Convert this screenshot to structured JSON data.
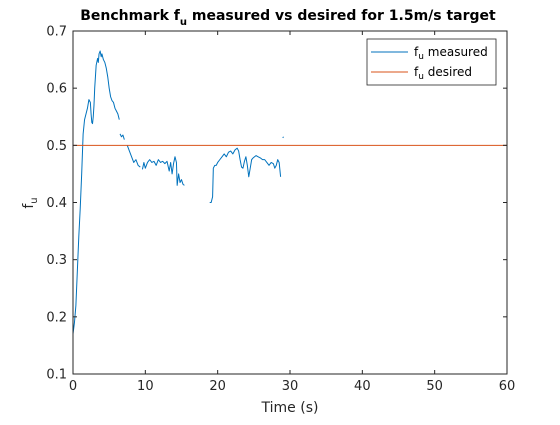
{
  "chart_data": {
    "type": "line",
    "title": {
      "prefix": "Benchmark f",
      "subscript": "u",
      "suffix": " measured vs desired for 1.5m/s target"
    },
    "xlabel": "Time (s)",
    "ylabel": {
      "main": "f",
      "subscript": "u"
    },
    "xlim": [
      0,
      60
    ],
    "ylim": [
      0.1,
      0.7
    ],
    "xticks": [
      0,
      10,
      20,
      30,
      40,
      50,
      60
    ],
    "yticks": [
      0.1,
      0.2,
      0.3,
      0.4,
      0.5,
      0.6,
      0.7
    ],
    "xtick_labels": [
      "0",
      "10",
      "20",
      "30",
      "40",
      "50",
      "60"
    ],
    "ytick_labels": [
      "0.1",
      "0.2",
      "0.3",
      "0.4",
      "0.5",
      "0.6",
      "0.7"
    ],
    "grid": false,
    "legend_position": "top-right",
    "series": [
      {
        "name": {
          "main": "f",
          "subscript": "u",
          "suffix": " measured"
        },
        "color": "#0072BD",
        "segments": [
          [
            [
              0,
              0.17
            ],
            [
              0.2,
              0.19
            ],
            [
              0.4,
              0.22
            ],
            [
              0.6,
              0.28
            ],
            [
              0.8,
              0.34
            ],
            [
              1.0,
              0.39
            ],
            [
              1.2,
              0.45
            ],
            [
              1.4,
              0.52
            ],
            [
              1.6,
              0.545
            ],
            [
              1.8,
              0.555
            ],
            [
              2.0,
              0.565
            ],
            [
              2.2,
              0.58
            ],
            [
              2.4,
              0.575
            ],
            [
              2.5,
              0.555
            ],
            [
              2.6,
              0.54
            ],
            [
              2.7,
              0.538
            ],
            [
              2.8,
              0.55
            ],
            [
              2.9,
              0.57
            ],
            [
              3.0,
              0.6
            ],
            [
              3.2,
              0.64
            ],
            [
              3.4,
              0.652
            ],
            [
              3.5,
              0.645
            ],
            [
              3.6,
              0.66
            ],
            [
              3.75,
              0.665
            ],
            [
              3.9,
              0.655
            ],
            [
              4.0,
              0.66
            ],
            [
              4.2,
              0.65
            ],
            [
              4.4,
              0.645
            ],
            [
              4.6,
              0.635
            ],
            [
              4.8,
              0.62
            ],
            [
              5.0,
              0.6
            ],
            [
              5.2,
              0.585
            ],
            [
              5.4,
              0.578
            ],
            [
              5.6,
              0.575
            ],
            [
              5.8,
              0.565
            ],
            [
              6.0,
              0.56
            ],
            [
              6.2,
              0.555
            ],
            [
              6.4,
              0.545
            ]
          ],
          [
            [
              6.5,
              0.52
            ],
            [
              6.7,
              0.515
            ],
            [
              6.9,
              0.518
            ],
            [
              7.1,
              0.51
            ]
          ],
          [
            [
              7.5,
              0.5
            ],
            [
              7.8,
              0.49
            ],
            [
              8.1,
              0.48
            ],
            [
              8.4,
              0.47
            ],
            [
              8.7,
              0.475
            ],
            [
              9.0,
              0.465
            ],
            [
              9.3,
              0.462
            ]
          ],
          [
            [
              9.6,
              0.458
            ],
            [
              9.8,
              0.47
            ],
            [
              10.0,
              0.46
            ],
            [
              10.3,
              0.47
            ],
            [
              10.6,
              0.475
            ],
            [
              10.9,
              0.47
            ],
            [
              11.2,
              0.472
            ],
            [
              11.5,
              0.465
            ],
            [
              11.8,
              0.475
            ],
            [
              12.1,
              0.47
            ],
            [
              12.4,
              0.472
            ],
            [
              12.7,
              0.468
            ],
            [
              13.0,
              0.472
            ],
            [
              13.3,
              0.455
            ],
            [
              13.5,
              0.47
            ],
            [
              13.7,
              0.45
            ],
            [
              13.9,
              0.468
            ],
            [
              14.1,
              0.48
            ],
            [
              14.3,
              0.47
            ],
            [
              14.4,
              0.43
            ],
            [
              14.6,
              0.45
            ],
            [
              14.8,
              0.435
            ],
            [
              15.0,
              0.44
            ],
            [
              15.2,
              0.432
            ],
            [
              15.4,
              0.43
            ]
          ],
          [
            [
              18.9,
              0.4
            ],
            [
              19.1,
              0.4
            ],
            [
              19.3,
              0.41
            ],
            [
              19.4,
              0.46
            ],
            [
              19.6,
              0.465
            ],
            [
              19.8,
              0.465
            ],
            [
              20.0,
              0.47
            ],
            [
              20.3,
              0.475
            ],
            [
              20.6,
              0.48
            ],
            [
              20.9,
              0.485
            ],
            [
              21.2,
              0.48
            ],
            [
              21.5,
              0.488
            ],
            [
              21.8,
              0.49
            ],
            [
              22.1,
              0.485
            ],
            [
              22.4,
              0.492
            ],
            [
              22.7,
              0.495
            ],
            [
              22.9,
              0.49
            ],
            [
              23.1,
              0.475
            ],
            [
              23.3,
              0.462
            ],
            [
              23.5,
              0.46
            ],
            [
              23.7,
              0.472
            ],
            [
              23.9,
              0.48
            ],
            [
              24.1,
              0.465
            ],
            [
              24.3,
              0.445
            ],
            [
              24.5,
              0.46
            ],
            [
              24.7,
              0.475
            ],
            [
              24.9,
              0.478
            ],
            [
              25.1,
              0.48
            ],
            [
              25.3,
              0.482
            ],
            [
              25.6,
              0.48
            ],
            [
              25.9,
              0.478
            ],
            [
              26.2,
              0.475
            ],
            [
              26.5,
              0.475
            ],
            [
              26.8,
              0.47
            ],
            [
              27.1,
              0.465
            ],
            [
              27.4,
              0.47
            ],
            [
              27.7,
              0.468
            ],
            [
              27.9,
              0.46
            ],
            [
              28.1,
              0.465
            ],
            [
              28.3,
              0.475
            ],
            [
              28.5,
              0.47
            ],
            [
              28.7,
              0.445
            ]
          ],
          [
            [
              29.0,
              0.513
            ],
            [
              29.1,
              0.515
            ]
          ]
        ]
      },
      {
        "name": {
          "main": "f",
          "subscript": "u",
          "suffix": " desired"
        },
        "color": "#D95319",
        "segments": [
          [
            [
              0,
              0.5
            ],
            [
              60,
              0.5
            ]
          ]
        ]
      }
    ]
  }
}
